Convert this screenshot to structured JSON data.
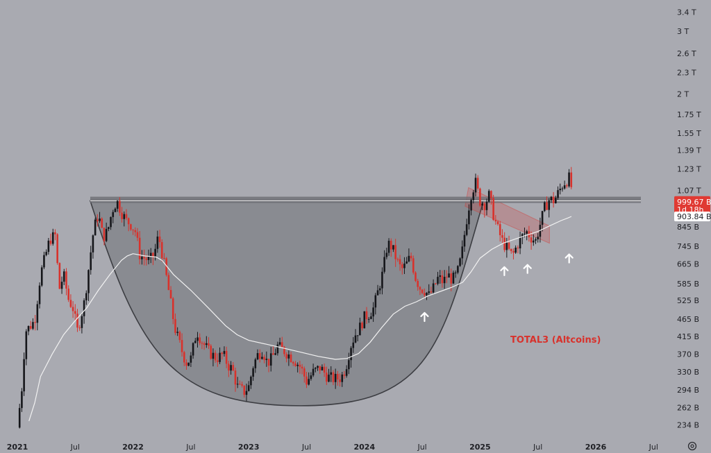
{
  "chart_data": {
    "type": "candlestick",
    "title": "TOTAL3 (Altcoins)",
    "y_scale": "log",
    "ylim": [
      220,
      3500
    ],
    "y_ticks": [
      {
        "label": "3.4 T",
        "value": 3400
      },
      {
        "label": "3 T",
        "value": 3000
      },
      {
        "label": "2.6 T",
        "value": 2600
      },
      {
        "label": "2.3 T",
        "value": 2300
      },
      {
        "label": "2 T",
        "value": 2000
      },
      {
        "label": "1.75 T",
        "value": 1750
      },
      {
        "label": "1.55 T",
        "value": 1550
      },
      {
        "label": "1.39 T",
        "value": 1390
      },
      {
        "label": "1.23 T",
        "value": 1230
      },
      {
        "label": "1.07 T",
        "value": 1070
      },
      {
        "label": "845 B",
        "value": 845
      },
      {
        "label": "745 B",
        "value": 745
      },
      {
        "label": "665 B",
        "value": 665
      },
      {
        "label": "585 B",
        "value": 585
      },
      {
        "label": "525 B",
        "value": 525
      },
      {
        "label": "465 B",
        "value": 465
      },
      {
        "label": "415 B",
        "value": 415
      },
      {
        "label": "370 B",
        "value": 370
      },
      {
        "label": "330 B",
        "value": 330
      },
      {
        "label": "294 B",
        "value": 294
      },
      {
        "label": "262 B",
        "value": 262
      },
      {
        "label": "234 B",
        "value": 234
      }
    ],
    "x_ticks": [
      {
        "label": "2021",
        "t": 2021.0,
        "bold": true
      },
      {
        "label": "Jul",
        "t": 2021.5,
        "bold": false
      },
      {
        "label": "2022",
        "t": 2022.0,
        "bold": true
      },
      {
        "label": "Jul",
        "t": 2022.5,
        "bold": false
      },
      {
        "label": "2023",
        "t": 2023.0,
        "bold": true
      },
      {
        "label": "Jul",
        "t": 2023.5,
        "bold": false
      },
      {
        "label": "2024",
        "t": 2024.0,
        "bold": true
      },
      {
        "label": "Jul",
        "t": 2024.5,
        "bold": false
      },
      {
        "label": "2025",
        "t": 2025.0,
        "bold": true
      },
      {
        "label": "Jul",
        "t": 2025.5,
        "bold": false
      },
      {
        "label": "2026",
        "t": 2026.0,
        "bold": true
      },
      {
        "label": "Jul",
        "t": 2026.5,
        "bold": false
      }
    ],
    "price_path": [
      [
        2021.0,
        230
      ],
      [
        2021.04,
        300
      ],
      [
        2021.07,
        430
      ],
      [
        2021.1,
        440
      ],
      [
        2021.15,
        460
      ],
      [
        2021.2,
        620
      ],
      [
        2021.28,
        780
      ],
      [
        2021.33,
        800
      ],
      [
        2021.36,
        560
      ],
      [
        2021.4,
        620
      ],
      [
        2021.44,
        530
      ],
      [
        2021.48,
        500
      ],
      [
        2021.52,
        430
      ],
      [
        2021.58,
        520
      ],
      [
        2021.63,
        700
      ],
      [
        2021.66,
        830
      ],
      [
        2021.7,
        920
      ],
      [
        2021.74,
        790
      ],
      [
        2021.78,
        820
      ],
      [
        2021.82,
        940
      ],
      [
        2021.86,
        1000
      ],
      [
        2021.9,
        930
      ],
      [
        2021.94,
        880
      ],
      [
        2021.98,
        860
      ],
      [
        2022.02,
        820
      ],
      [
        2022.06,
        700
      ],
      [
        2022.1,
        690
      ],
      [
        2022.14,
        680
      ],
      [
        2022.18,
        700
      ],
      [
        2022.22,
        800
      ],
      [
        2022.26,
        690
      ],
      [
        2022.3,
        580
      ],
      [
        2022.36,
        440
      ],
      [
        2022.42,
        380
      ],
      [
        2022.46,
        350
      ],
      [
        2022.5,
        360
      ],
      [
        2022.55,
        430
      ],
      [
        2022.6,
        400
      ],
      [
        2022.66,
        375
      ],
      [
        2022.72,
        360
      ],
      [
        2022.78,
        370
      ],
      [
        2022.82,
        345
      ],
      [
        2022.86,
        335
      ],
      [
        2022.9,
        300
      ],
      [
        2022.96,
        290
      ],
      [
        2023.0,
        300
      ],
      [
        2023.04,
        345
      ],
      [
        2023.08,
        370
      ],
      [
        2023.12,
        380
      ],
      [
        2023.16,
        350
      ],
      [
        2023.2,
        360
      ],
      [
        2023.25,
        390
      ],
      [
        2023.3,
        380
      ],
      [
        2023.34,
        370
      ],
      [
        2023.4,
        355
      ],
      [
        2023.45,
        340
      ],
      [
        2023.5,
        310
      ],
      [
        2023.56,
        330
      ],
      [
        2023.62,
        340
      ],
      [
        2023.68,
        320
      ],
      [
        2023.74,
        315
      ],
      [
        2023.8,
        318
      ],
      [
        2023.84,
        340
      ],
      [
        2023.88,
        390
      ],
      [
        2023.92,
        420
      ],
      [
        2023.96,
        440
      ],
      [
        2024.0,
        470
      ],
      [
        2024.04,
        480
      ],
      [
        2024.08,
        500
      ],
      [
        2024.12,
        560
      ],
      [
        2024.16,
        630
      ],
      [
        2024.2,
        760
      ],
      [
        2024.24,
        740
      ],
      [
        2024.28,
        680
      ],
      [
        2024.32,
        640
      ],
      [
        2024.36,
        660
      ],
      [
        2024.4,
        700
      ],
      [
        2024.44,
        610
      ],
      [
        2024.48,
        570
      ],
      [
        2024.52,
        560
      ],
      [
        2024.56,
        540
      ],
      [
        2024.6,
        570
      ],
      [
        2024.64,
        610
      ],
      [
        2024.68,
        590
      ],
      [
        2024.72,
        620
      ],
      [
        2024.76,
        600
      ],
      [
        2024.8,
        620
      ],
      [
        2024.84,
        700
      ],
      [
        2024.88,
        870
      ],
      [
        2024.92,
        1040
      ],
      [
        2024.96,
        1130
      ],
      [
        2025.0,
        1000
      ],
      [
        2025.04,
        980
      ],
      [
        2025.08,
        1040
      ],
      [
        2025.12,
        900
      ],
      [
        2025.16,
        820
      ],
      [
        2025.2,
        760
      ],
      [
        2025.24,
        730
      ],
      [
        2025.28,
        700
      ],
      [
        2025.32,
        750
      ],
      [
        2025.36,
        790
      ],
      [
        2025.4,
        820
      ],
      [
        2025.44,
        790
      ],
      [
        2025.48,
        770
      ],
      [
        2025.52,
        860
      ],
      [
        2025.56,
        960
      ],
      [
        2025.6,
        1010
      ],
      [
        2025.64,
        1000
      ],
      [
        2025.68,
        1060
      ],
      [
        2025.72,
        1120
      ],
      [
        2025.76,
        1150
      ],
      [
        2025.78,
        1170
      ],
      [
        2025.8,
        999.67
      ]
    ],
    "moving_average": [
      [
        2021.1,
        240
      ],
      [
        2021.15,
        270
      ],
      [
        2021.2,
        320
      ],
      [
        2021.3,
        370
      ],
      [
        2021.4,
        420
      ],
      [
        2021.5,
        460
      ],
      [
        2021.6,
        500
      ],
      [
        2021.7,
        560
      ],
      [
        2021.8,
        620
      ],
      [
        2021.9,
        680
      ],
      [
        2021.95,
        700
      ],
      [
        2022.0,
        710
      ],
      [
        2022.1,
        700
      ],
      [
        2022.2,
        695
      ],
      [
        2022.25,
        680
      ],
      [
        2022.35,
        620
      ],
      [
        2022.5,
        560
      ],
      [
        2022.65,
        500
      ],
      [
        2022.8,
        445
      ],
      [
        2022.9,
        420
      ],
      [
        2023.0,
        405
      ],
      [
        2023.15,
        395
      ],
      [
        2023.3,
        385
      ],
      [
        2023.45,
        375
      ],
      [
        2023.6,
        365
      ],
      [
        2023.75,
        358
      ],
      [
        2023.85,
        360
      ],
      [
        2023.95,
        372
      ],
      [
        2024.05,
        400
      ],
      [
        2024.15,
        440
      ],
      [
        2024.25,
        480
      ],
      [
        2024.35,
        505
      ],
      [
        2024.45,
        520
      ],
      [
        2024.55,
        540
      ],
      [
        2024.65,
        555
      ],
      [
        2024.75,
        570
      ],
      [
        2024.85,
        590
      ],
      [
        2024.92,
        630
      ],
      [
        2025.0,
        690
      ],
      [
        2025.1,
        730
      ],
      [
        2025.2,
        760
      ],
      [
        2025.3,
        780
      ],
      [
        2025.4,
        800
      ],
      [
        2025.5,
        820
      ],
      [
        2025.6,
        850
      ],
      [
        2025.7,
        880
      ],
      [
        2025.76,
        895
      ],
      [
        2025.79,
        903.84
      ]
    ],
    "last_price": {
      "label": "999.67 B",
      "countdown": "1d 18h",
      "color": "#e03a33"
    },
    "ma_value": {
      "label": "903.84 B"
    },
    "resistance_level": 1000,
    "cup": {
      "start": 2021.63,
      "bottom_t": 2023.45,
      "bottom_v": 265,
      "end": 2025.03,
      "rim": 1000
    },
    "channel": {
      "t1": 2024.93,
      "v1": 1080,
      "t2": 2025.6,
      "v2": 850,
      "lower_offset_v": 760
    },
    "arrows": [
      {
        "t": 2024.52,
        "v": 520
      },
      {
        "t": 2025.21,
        "v": 700
      },
      {
        "t": 2025.41,
        "v": 710
      },
      {
        "t": 2025.77,
        "v": 760
      }
    ],
    "colors": {
      "up": "#15161a",
      "down": "#d8322c",
      "ma": "#f2f2f2",
      "cup_fill": "#7f8087",
      "bg": "#a9aab1"
    }
  }
}
